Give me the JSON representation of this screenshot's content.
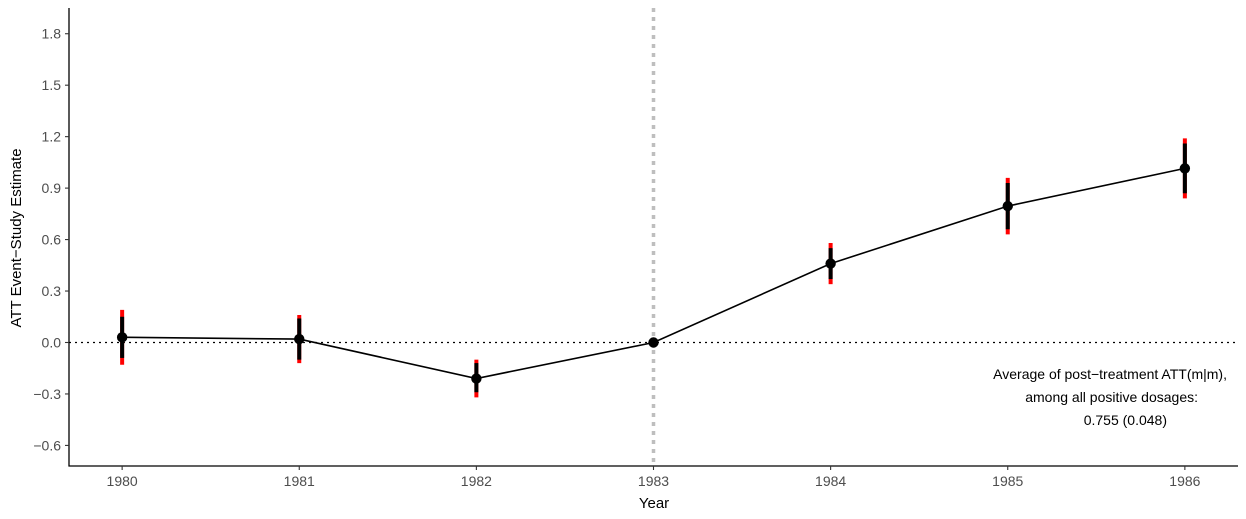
{
  "chart_data": {
    "type": "line",
    "xlabel": "Year",
    "ylabel": "ATT Event−Study Estimate",
    "x": [
      1980,
      1981,
      1982,
      1983,
      1984,
      1985,
      1986
    ],
    "x_tick_labels": [
      "1980",
      "1981",
      "1982",
      "1983",
      "1984",
      "1985",
      "1986"
    ],
    "xlim": [
      1979.7,
      1986.3
    ],
    "y_ticks": [
      -0.6,
      -0.3,
      0.0,
      0.3,
      0.6,
      0.9,
      1.2,
      1.5,
      1.8
    ],
    "y_tick_labels": [
      "−0.6",
      "−0.3",
      "0.0",
      "0.3",
      "0.6",
      "0.9",
      "1.2",
      "1.5",
      "1.8"
    ],
    "ylim": [
      -0.72,
      1.95
    ],
    "series": [
      {
        "estimate": [
          0.03,
          0.02,
          -0.21,
          0.0,
          0.46,
          0.795,
          1.015
        ],
        "ci_pointwise_lower": [
          -0.09,
          -0.1,
          -0.29,
          0.0,
          0.37,
          0.66,
          0.87
        ],
        "ci_pointwise_upper": [
          0.15,
          0.14,
          -0.12,
          0.0,
          0.55,
          0.93,
          1.16
        ],
        "ci_uniform_lower": [
          -0.13,
          -0.12,
          -0.32,
          0.0,
          0.34,
          0.63,
          0.84
        ],
        "ci_uniform_upper": [
          0.19,
          0.16,
          -0.1,
          0.0,
          0.58,
          0.96,
          1.19
        ]
      }
    ],
    "reference_hline": 0.0,
    "reference_vline": 1983,
    "grid": false,
    "colors": {
      "line": "#000000",
      "point": "#000000",
      "ci_pointwise": "#000000",
      "ci_uniform": "#ff0000",
      "vline": "#bebebe",
      "hline": "#000000",
      "tick_text": "#4d4d4d"
    },
    "annotation": [
      "Average of post−treatment ATT(m|m),",
      "among all positive dosages:",
      "0.755 (0.048)"
    ]
  }
}
